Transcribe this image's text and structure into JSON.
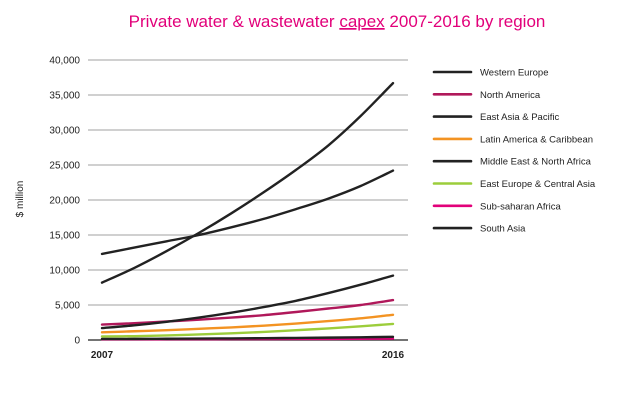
{
  "chart_data": {
    "type": "line",
    "title": "Private water & wastewater capex 2007-2016 by region",
    "title_parts": [
      "Private water & wastewater ",
      "capex",
      " 2007-2016 by region"
    ],
    "title_color": "#e2007a",
    "ylabel": "$ million",
    "xlabel": "",
    "x_ticks": [
      "2007",
      "2016"
    ],
    "ylim": [
      0,
      40000
    ],
    "y_ticks": [
      "0",
      "5,000",
      "10,000",
      "15,000",
      "20,000",
      "25,000",
      "30,000",
      "35,000",
      "40,000"
    ],
    "x": [
      2007,
      2008,
      2009,
      2010,
      2011,
      2012,
      2013,
      2014,
      2015,
      2016
    ],
    "grid": "horizontal",
    "legend_position": "right",
    "series": [
      {
        "name": "Western Europe",
        "color": "#222222",
        "values": [
          8200,
          10300,
          12700,
          15300,
          18100,
          21100,
          24300,
          27800,
          32000,
          36700
        ]
      },
      {
        "name": "North America",
        "color": "#b0185a",
        "values": [
          2200,
          2400,
          2650,
          2900,
          3200,
          3550,
          4000,
          4500,
          5000,
          5700
        ]
      },
      {
        "name": "East Asia & Pacific",
        "color": "#222222",
        "values": [
          12300,
          13200,
          14100,
          15000,
          16100,
          17300,
          18700,
          20200,
          22000,
          24200
        ]
      },
      {
        "name": "Latin America & Caribbean",
        "color": "#f39322",
        "values": [
          1100,
          1250,
          1400,
          1600,
          1800,
          2050,
          2350,
          2700,
          3100,
          3600
        ]
      },
      {
        "name": "Middle East & North Africa",
        "color": "#222222",
        "values": [
          1700,
          2100,
          2600,
          3200,
          3900,
          4700,
          5600,
          6700,
          7900,
          9200
        ]
      },
      {
        "name": "East Europe & Central Asia",
        "color": "#9ccd3b",
        "values": [
          500,
          550,
          650,
          800,
          950,
          1150,
          1400,
          1650,
          1950,
          2300
        ]
      },
      {
        "name": "Sub-saharan Africa",
        "color": "#e2007a",
        "values": [
          100,
          100,
          110,
          120,
          130,
          140,
          150,
          160,
          180,
          200
        ]
      },
      {
        "name": "South Asia",
        "color": "#222222",
        "values": [
          150,
          160,
          180,
          200,
          230,
          260,
          300,
          340,
          390,
          450
        ]
      }
    ]
  }
}
